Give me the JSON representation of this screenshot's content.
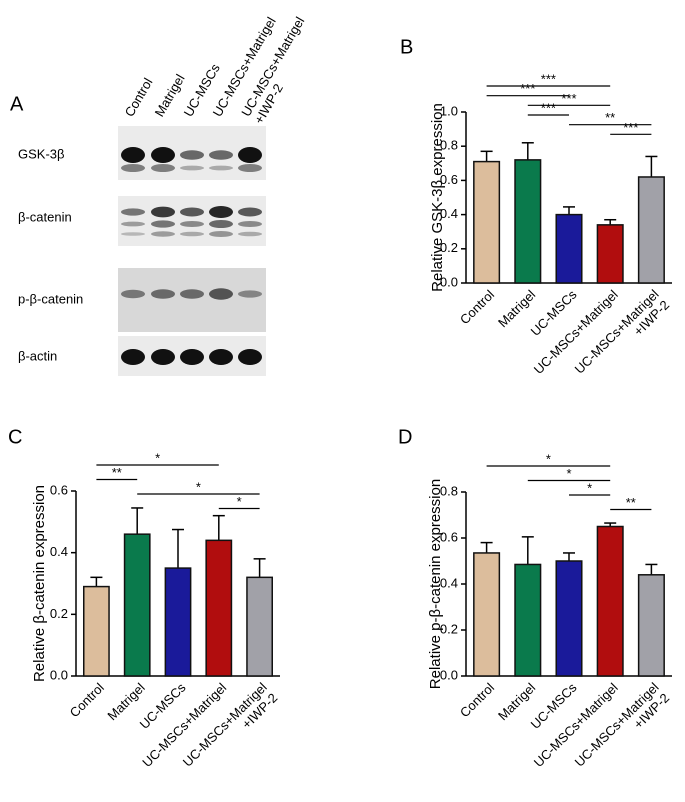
{
  "blot": {
    "panel_label": "A",
    "lanes": [
      "Control",
      "Matrigel",
      "UC-MSCs",
      "UC-MSCs+Matrigel",
      "UC-MSCs+Matrigel\n+IWP-2"
    ],
    "rows": [
      "GSK-3β",
      "β-catenin",
      "p-β-catenin",
      "β-actin"
    ]
  },
  "chart_data": [
    {
      "type": "bar",
      "panel_label": "B",
      "ylabel": "Relative GSK-3β expression",
      "categories": [
        "Control",
        "Matrigel",
        "UC-MSCs",
        "UC-MSCs+Matrigel",
        "UC-MSCs+Matrigel\n+IWP-2"
      ],
      "values": [
        0.71,
        0.72,
        0.4,
        0.34,
        0.62
      ],
      "errors": [
        0.06,
        0.1,
        0.045,
        0.03,
        0.12
      ],
      "colors": [
        "#dcbd9c",
        "#0a7a4c",
        "#1a1a9a",
        "#b10d0e",
        "#a1a1a8"
      ],
      "ylim": [
        0,
        1.0
      ],
      "yticks": [
        {
          "value": 0,
          "label": "0.0"
        },
        {
          "value": 0.2,
          "label": "0.2"
        },
        {
          "value": 0.4,
          "label": "0.4"
        },
        {
          "value": 0.6,
          "label": "0.6"
        },
        {
          "value": 0.8,
          "label": "0.8"
        },
        {
          "value": 1.0,
          "label": "1.0"
        }
      ],
      "significance": [
        {
          "pair": [
            "Control",
            "UC-MSCs+Matrigel"
          ],
          "label": "***"
        },
        {
          "pair": [
            "Control",
            "UC-MSCs"
          ],
          "label": "***"
        },
        {
          "pair": [
            "Matrigel",
            "UC-MSCs+Matrigel"
          ],
          "label": "***"
        },
        {
          "pair": [
            "Matrigel",
            "UC-MSCs"
          ],
          "label": "***"
        },
        {
          "pair": [
            "UC-MSCs",
            "UC-MSCs+Matrigel\n+IWP-2"
          ],
          "label": "**"
        },
        {
          "pair": [
            "UC-MSCs+Matrigel",
            "UC-MSCs+Matrigel\n+IWP-2"
          ],
          "label": "***"
        }
      ]
    },
    {
      "type": "bar",
      "panel_label": "C",
      "ylabel": "Relative β-catenin expression",
      "categories": [
        "Control",
        "Matrigel",
        "UC-MSCs",
        "UC-MSCs+Matrigel",
        "UC-MSCs+Matrigel\n+IWP-2"
      ],
      "values": [
        0.29,
        0.46,
        0.35,
        0.44,
        0.32
      ],
      "errors": [
        0.03,
        0.085,
        0.125,
        0.08,
        0.06
      ],
      "colors": [
        "#dcbd9c",
        "#0a7a4c",
        "#1a1a9a",
        "#b10d0e",
        "#a1a1a8"
      ],
      "ylim": [
        0,
        0.6
      ],
      "yticks": [
        {
          "value": 0,
          "label": "0.0"
        },
        {
          "value": 0.2,
          "label": "0.2"
        },
        {
          "value": 0.4,
          "label": "0.4"
        },
        {
          "value": 0.6,
          "label": "0.6"
        }
      ],
      "significance": [
        {
          "pair": [
            "Control",
            "UC-MSCs+Matrigel"
          ],
          "label": "*"
        },
        {
          "pair": [
            "Control",
            "Matrigel"
          ],
          "label": "**"
        },
        {
          "pair": [
            "Matrigel",
            "UC-MSCs+Matrigel\n+IWP-2"
          ],
          "label": "*"
        },
        {
          "pair": [
            "UC-MSCs+Matrigel",
            "UC-MSCs+Matrigel\n+IWP-2"
          ],
          "label": "*"
        }
      ]
    },
    {
      "type": "bar",
      "panel_label": "D",
      "ylabel": "Relative p-β-catenin expression",
      "categories": [
        "Control",
        "Matrigel",
        "UC-MSCs",
        "UC-MSCs+Matrigel",
        "UC-MSCs+Matrigel\n+IWP-2"
      ],
      "values": [
        0.535,
        0.485,
        0.5,
        0.65,
        0.44
      ],
      "errors": [
        0.045,
        0.12,
        0.035,
        0.015,
        0.045
      ],
      "colors": [
        "#dcbd9c",
        "#0a7a4c",
        "#1a1a9a",
        "#b10d0e",
        "#a1a1a8"
      ],
      "ylim": [
        0,
        0.8
      ],
      "yticks": [
        {
          "value": 0,
          "label": "0.0"
        },
        {
          "value": 0.2,
          "label": "0.2"
        },
        {
          "value": 0.4,
          "label": "0.4"
        },
        {
          "value": 0.6,
          "label": "0.6"
        },
        {
          "value": 0.8,
          "label": "0.8"
        }
      ],
      "significance": [
        {
          "pair": [
            "Control",
            "UC-MSCs+Matrigel"
          ],
          "label": "*"
        },
        {
          "pair": [
            "Matrigel",
            "UC-MSCs+Matrigel"
          ],
          "label": "*"
        },
        {
          "pair": [
            "UC-MSCs",
            "UC-MSCs+Matrigel"
          ],
          "label": "*"
        },
        {
          "pair": [
            "UC-MSCs+Matrigel",
            "UC-MSCs+Matrigel\n+IWP-2"
          ],
          "label": "**"
        }
      ]
    }
  ]
}
